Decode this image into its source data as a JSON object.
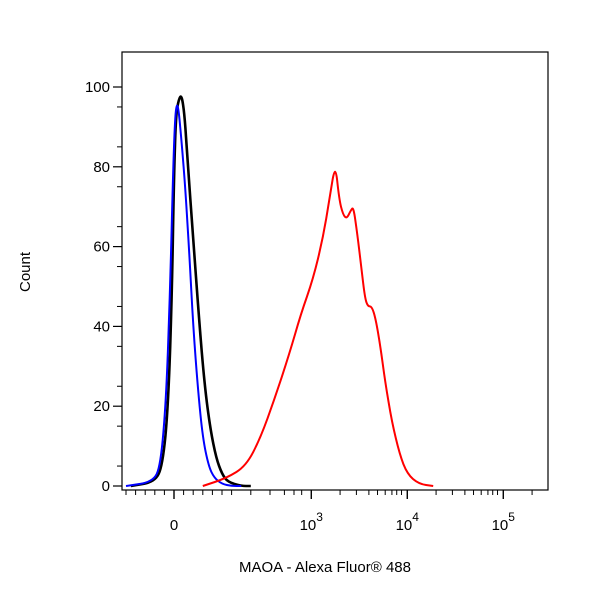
{
  "chart_data": {
    "type": "line",
    "title": "",
    "xlabel": "MAOA - Alexa Fluor® 488",
    "ylabel": "Count",
    "ylim": [
      0,
      100
    ],
    "y_ticks": [
      "0",
      "20",
      "40",
      "60",
      "80",
      "100"
    ],
    "x_scale": "biexponential",
    "x_tick_labels": [
      {
        "base": "0",
        "exp": ""
      },
      {
        "base": "10",
        "exp": "3"
      },
      {
        "base": "10",
        "exp": "4"
      },
      {
        "base": "10",
        "exp": "5"
      }
    ],
    "grid": false,
    "legend": "none",
    "series": [
      {
        "color": "#000000",
        "points": [
          [
            -0.45,
            0
          ],
          [
            -0.2,
            1
          ],
          [
            -0.12,
            5
          ],
          [
            -0.06,
            20
          ],
          [
            -0.02,
            50
          ],
          [
            0.0,
            78
          ],
          [
            0.02,
            93
          ],
          [
            0.05,
            97
          ],
          [
            0.08,
            98
          ],
          [
            0.11,
            93
          ],
          [
            0.14,
            82
          ],
          [
            0.2,
            62
          ],
          [
            0.26,
            42
          ],
          [
            0.32,
            25
          ],
          [
            0.38,
            14
          ],
          [
            0.44,
            7
          ],
          [
            0.5,
            3
          ],
          [
            0.56,
            1
          ],
          [
            0.7,
            0
          ],
          [
            0.8,
            0
          ]
        ]
      },
      {
        "color": "#0000ff",
        "points": [
          [
            -0.5,
            0
          ],
          [
            -0.22,
            1
          ],
          [
            -0.14,
            5
          ],
          [
            -0.08,
            22
          ],
          [
            -0.04,
            50
          ],
          [
            -0.01,
            78
          ],
          [
            0.01,
            92
          ],
          [
            0.03,
            96
          ],
          [
            0.05,
            94
          ],
          [
            0.08,
            86
          ],
          [
            0.12,
            74
          ],
          [
            0.16,
            58
          ],
          [
            0.2,
            40
          ],
          [
            0.25,
            24
          ],
          [
            0.3,
            12
          ],
          [
            0.36,
            5
          ],
          [
            0.42,
            2
          ],
          [
            0.5,
            0.5
          ],
          [
            0.6,
            0
          ],
          [
            0.7,
            0
          ]
        ]
      },
      {
        "color": "#ff0000",
        "points": [
          [
            0.3,
            0
          ],
          [
            0.55,
            2
          ],
          [
            0.75,
            5
          ],
          [
            0.9,
            12
          ],
          [
            1.05,
            22
          ],
          [
            1.2,
            33
          ],
          [
            1.32,
            43
          ],
          [
            1.45,
            52
          ],
          [
            1.55,
            62
          ],
          [
            1.62,
            72
          ],
          [
            1.68,
            81
          ],
          [
            1.72,
            72
          ],
          [
            1.76,
            68
          ],
          [
            1.8,
            67
          ],
          [
            1.84,
            69
          ],
          [
            1.87,
            70
          ],
          [
            1.91,
            63
          ],
          [
            1.95,
            55
          ],
          [
            1.99,
            47
          ],
          [
            2.02,
            45
          ],
          [
            2.06,
            45
          ],
          [
            2.1,
            42
          ],
          [
            2.15,
            35
          ],
          [
            2.2,
            26
          ],
          [
            2.27,
            16
          ],
          [
            2.35,
            8
          ],
          [
            2.43,
            3
          ],
          [
            2.55,
            0.5
          ],
          [
            2.7,
            0
          ]
        ]
      }
    ]
  }
}
